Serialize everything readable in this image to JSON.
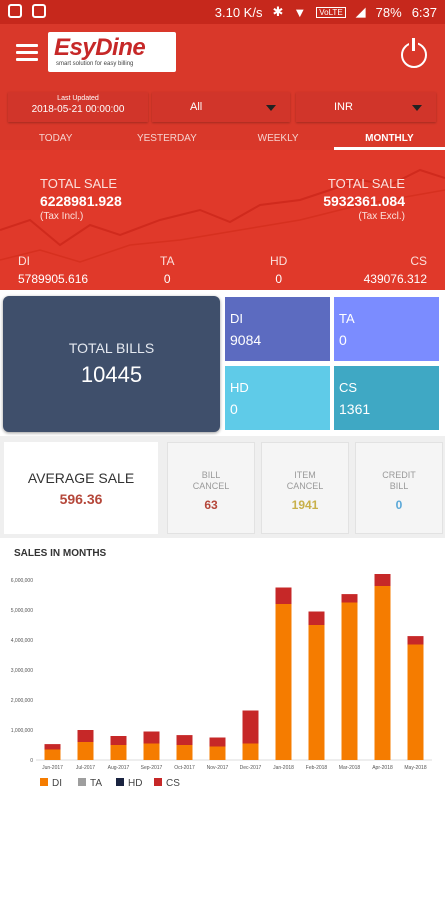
{
  "status_bar": {
    "network_speed": "3.10 K/s",
    "network_type": "VoLTE",
    "battery": "78%",
    "time": "6:37"
  },
  "header": {
    "logo_text": "EsyDine",
    "logo_tagline": "smart solution for easy billing"
  },
  "filters": {
    "last_updated_label": "Last Updated",
    "last_updated_value": "2018-05-21 00:00:00",
    "scope_value": "All",
    "currency_value": "INR"
  },
  "tabs": [
    {
      "label": "TODAY"
    },
    {
      "label": "YESTERDAY"
    },
    {
      "label": "WEEKLY"
    },
    {
      "label": "MONTHLY"
    }
  ],
  "totals": {
    "sale_incl_label": "TOTAL SALE",
    "sale_incl_value": "6228981.928",
    "sale_incl_note": "(Tax Incl.)",
    "sale_excl_label": "TOTAL SALE",
    "sale_excl_value": "5932361.084",
    "sale_excl_note": "(Tax Excl.)"
  },
  "channels": [
    {
      "key": "DI",
      "value": "5789905.616"
    },
    {
      "key": "TA",
      "value": "0"
    },
    {
      "key": "HD",
      "value": "0"
    },
    {
      "key": "CS",
      "value": "439076.312"
    }
  ],
  "bills": {
    "total_label": "TOTAL BILLS",
    "total_value": "10445",
    "tiles": [
      {
        "key": "DI",
        "value": "9084",
        "color": "#5c6bc0"
      },
      {
        "key": "TA",
        "value": "0",
        "color": "#7b8cff"
      },
      {
        "key": "HD",
        "value": "0",
        "color": "#5fcbe8"
      },
      {
        "key": "CS",
        "value": "1361",
        "color": "#3fa8c4"
      }
    ]
  },
  "summary": {
    "average_label": "AVERAGE SALE",
    "average_value": "596.36",
    "cards": [
      {
        "label_1": "BILL",
        "label_2": "CANCEL",
        "value": "63",
        "color": "#b5473a"
      },
      {
        "label_1": "ITEM",
        "label_2": "CANCEL",
        "value": "1941",
        "color": "#c8b04a"
      },
      {
        "label_1": "CREDIT",
        "label_2": "BILL",
        "value": "0",
        "color": "#5aa8d8"
      }
    ]
  },
  "chart_section_title": "SALES IN MONTHS",
  "chart_data": {
    "type": "bar",
    "stacked": true,
    "categories": [
      "Jun-2017",
      "Jul-2017",
      "Aug-2017",
      "Sep-2017",
      "Oct-2017",
      "Nov-2017",
      "Dec-2017",
      "Jan-2018",
      "Feb-2018",
      "Mar-2018",
      "Apr-2018",
      "May-2018"
    ],
    "y_ticks": [
      "0",
      "1,000,000",
      "2,000,000",
      "3,000,000",
      "4,000,000",
      "5,000,000",
      "6,000,000"
    ],
    "ylim": [
      0,
      6000000
    ],
    "series": [
      {
        "name": "DI",
        "color": "#f57c00",
        "values": [
          350000,
          600000,
          500000,
          550000,
          500000,
          450000,
          550000,
          5200000,
          4500000,
          5250000,
          5800000,
          3850000
        ]
      },
      {
        "name": "TA",
        "color": "#9e9e9e",
        "values": [
          0,
          0,
          0,
          0,
          0,
          0,
          0,
          0,
          0,
          0,
          0,
          0
        ]
      },
      {
        "name": "HD",
        "color": "#1a2340",
        "values": [
          0,
          0,
          0,
          0,
          0,
          0,
          0,
          0,
          0,
          0,
          0,
          0
        ]
      },
      {
        "name": "CS",
        "color": "#c62828",
        "values": [
          180000,
          400000,
          300000,
          400000,
          330000,
          300000,
          1100000,
          550000,
          450000,
          280000,
          400000,
          280000
        ]
      }
    ]
  }
}
